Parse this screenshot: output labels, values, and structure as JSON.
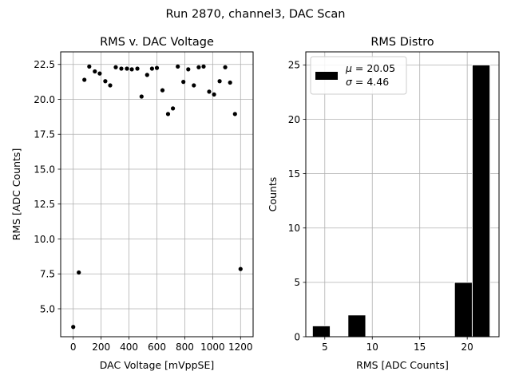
{
  "figure": {
    "suptitle": "Run 2870, channel3, DAC Scan",
    "background": "#ffffff"
  },
  "chart_data": [
    {
      "type": "scatter",
      "title": "RMS v. DAC Voltage",
      "xlabel": "DAC Voltage [mVppSE]",
      "ylabel": "RMS [ADC Counts]",
      "xlim": [
        -90,
        1290
      ],
      "ylim": [
        3.0,
        23.4
      ],
      "xticks": [
        0,
        200,
        400,
        600,
        800,
        1000,
        1200
      ],
      "yticks": [
        5.0,
        7.5,
        10.0,
        12.5,
        15.0,
        17.5,
        20.0,
        22.5
      ],
      "ytick_decimals": 1,
      "grid": true,
      "marker_color": "#000000",
      "points": [
        {
          "x": 0,
          "y": 3.7
        },
        {
          "x": 40,
          "y": 7.6
        },
        {
          "x": 80,
          "y": 21.4
        },
        {
          "x": 115,
          "y": 22.35
        },
        {
          "x": 155,
          "y": 22.0
        },
        {
          "x": 190,
          "y": 21.85
        },
        {
          "x": 230,
          "y": 21.3
        },
        {
          "x": 265,
          "y": 21.0
        },
        {
          "x": 305,
          "y": 22.3
        },
        {
          "x": 345,
          "y": 22.2
        },
        {
          "x": 385,
          "y": 22.2
        },
        {
          "x": 420,
          "y": 22.15
        },
        {
          "x": 460,
          "y": 22.2
        },
        {
          "x": 490,
          "y": 20.2
        },
        {
          "x": 530,
          "y": 21.75
        },
        {
          "x": 565,
          "y": 22.2
        },
        {
          "x": 600,
          "y": 22.25
        },
        {
          "x": 640,
          "y": 20.65
        },
        {
          "x": 680,
          "y": 18.95
        },
        {
          "x": 715,
          "y": 19.35
        },
        {
          "x": 750,
          "y": 22.35
        },
        {
          "x": 790,
          "y": 21.25
        },
        {
          "x": 825,
          "y": 22.15
        },
        {
          "x": 865,
          "y": 21.0
        },
        {
          "x": 900,
          "y": 22.3
        },
        {
          "x": 935,
          "y": 22.35
        },
        {
          "x": 975,
          "y": 20.55
        },
        {
          "x": 1010,
          "y": 20.35
        },
        {
          "x": 1050,
          "y": 21.3
        },
        {
          "x": 1090,
          "y": 22.3
        },
        {
          "x": 1125,
          "y": 21.2
        },
        {
          "x": 1160,
          "y": 18.95
        },
        {
          "x": 1200,
          "y": 7.85
        }
      ]
    },
    {
      "type": "bar",
      "title": "RMS Distro",
      "xlabel": "RMS [ADC Counts]",
      "ylabel": "Counts",
      "xlim": [
        3.0,
        23.35
      ],
      "ylim": [
        0,
        26.2
      ],
      "xticks": [
        5,
        10,
        15,
        20
      ],
      "yticks": [
        0,
        5,
        10,
        15,
        20,
        25
      ],
      "ytick_decimals": 0,
      "grid": true,
      "bar_color": "#000000",
      "bar_edge_color": "#ffffff",
      "bins": [
        {
          "left": 3.7,
          "right": 5.57,
          "count": 1
        },
        {
          "left": 5.57,
          "right": 7.44,
          "count": 0
        },
        {
          "left": 7.44,
          "right": 9.31,
          "count": 2
        },
        {
          "left": 9.31,
          "right": 11.18,
          "count": 0
        },
        {
          "left": 11.18,
          "right": 13.05,
          "count": 0
        },
        {
          "left": 13.05,
          "right": 14.92,
          "count": 0
        },
        {
          "left": 14.92,
          "right": 16.79,
          "count": 0
        },
        {
          "left": 16.79,
          "right": 18.66,
          "count": 0
        },
        {
          "left": 18.66,
          "right": 20.53,
          "count": 5
        },
        {
          "left": 20.53,
          "right": 22.4,
          "count": 25
        }
      ],
      "legend": {
        "placement": "top-left",
        "mu_symbol": "μ",
        "mu_text": " = 20.05",
        "sigma_symbol": "σ",
        "sigma_text": " = 4.46"
      }
    }
  ]
}
